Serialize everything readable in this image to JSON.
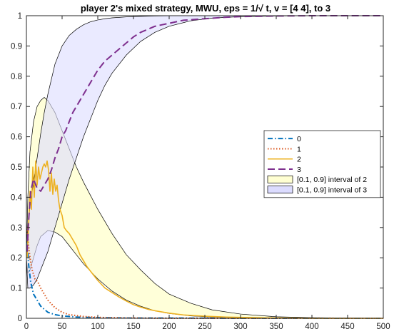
{
  "chart_data": {
    "type": "line",
    "title": "player 2's mixed strategy, MWU, eps = 1/√ t, v = [4  4], to 3",
    "xlabel": "",
    "ylabel": "",
    "xlim": [
      0,
      500
    ],
    "ylim": [
      0,
      1
    ],
    "x_ticks": [
      0,
      50,
      100,
      150,
      200,
      250,
      300,
      350,
      400,
      450,
      500
    ],
    "y_ticks": [
      0,
      0.1,
      0.2,
      0.3,
      0.4,
      0.5,
      0.6,
      0.7,
      0.8,
      0.9,
      1
    ],
    "grid": false,
    "legend_position": "right",
    "series": [
      {
        "name": "0",
        "color": "#0072BD",
        "dash": "dash-dot",
        "x": [
          1,
          3,
          6,
          10,
          15,
          20,
          30,
          40,
          50,
          70,
          100,
          150,
          200,
          300,
          400,
          500
        ],
        "y": [
          0.25,
          0.18,
          0.12,
          0.08,
          0.06,
          0.04,
          0.02,
          0.012,
          0.008,
          0.004,
          0.002,
          0.001,
          0.001,
          0.0,
          0.0,
          0.0
        ]
      },
      {
        "name": "1",
        "color": "#D95319",
        "dash": "dotted",
        "x": [
          1,
          3,
          5,
          8,
          12,
          16,
          20,
          25,
          30,
          40,
          50,
          60,
          80,
          100,
          150,
          200,
          300,
          500
        ],
        "y": [
          0.3,
          0.24,
          0.2,
          0.16,
          0.13,
          0.12,
          0.1,
          0.08,
          0.06,
          0.035,
          0.02,
          0.012,
          0.006,
          0.003,
          0.001,
          0.0,
          0.0,
          0.0
        ]
      },
      {
        "name": "2",
        "color": "#EDB120",
        "dash": "solid",
        "x": [
          1,
          3,
          5,
          7,
          9,
          11,
          13,
          15,
          17,
          19,
          21,
          23,
          25,
          27,
          29,
          31,
          33,
          35,
          37,
          39,
          41,
          43,
          45,
          47,
          50,
          53,
          56,
          60,
          65,
          70,
          75,
          80,
          85,
          90,
          95,
          100,
          110,
          120,
          130,
          140,
          150,
          160,
          170,
          180,
          200,
          220,
          250,
          280,
          300,
          350,
          400,
          450,
          500
        ],
        "y": [
          0.2,
          0.3,
          0.42,
          0.36,
          0.5,
          0.4,
          0.52,
          0.44,
          0.5,
          0.46,
          0.48,
          0.5,
          0.51,
          0.5,
          0.52,
          0.49,
          0.42,
          0.48,
          0.41,
          0.46,
          0.42,
          0.44,
          0.39,
          0.36,
          0.34,
          0.3,
          0.29,
          0.28,
          0.26,
          0.24,
          0.21,
          0.19,
          0.17,
          0.155,
          0.14,
          0.125,
          0.1,
          0.085,
          0.07,
          0.057,
          0.045,
          0.037,
          0.03,
          0.025,
          0.017,
          0.011,
          0.007,
          0.004,
          0.003,
          0.001,
          0.0,
          0.0,
          0.0
        ]
      },
      {
        "name": "3",
        "color": "#7E2F8E",
        "dash": "dashed",
        "x": [
          1,
          3,
          6,
          10,
          15,
          20,
          25,
          30,
          35,
          40,
          45,
          50,
          55,
          60,
          65,
          70,
          75,
          80,
          85,
          90,
          95,
          100,
          110,
          120,
          130,
          140,
          150,
          160,
          170,
          180,
          200,
          220,
          250,
          280,
          300,
          350,
          400,
          450,
          500
        ],
        "y": [
          0.22,
          0.32,
          0.42,
          0.46,
          0.43,
          0.42,
          0.44,
          0.46,
          0.49,
          0.53,
          0.56,
          0.6,
          0.62,
          0.65,
          0.68,
          0.7,
          0.72,
          0.74,
          0.76,
          0.78,
          0.8,
          0.82,
          0.85,
          0.87,
          0.89,
          0.91,
          0.93,
          0.945,
          0.955,
          0.965,
          0.975,
          0.985,
          0.99,
          0.995,
          0.997,
          0.999,
          1.0,
          1.0,
          1.0
        ]
      }
    ],
    "bands": [
      {
        "name": "[0.1, 0.9] interval of 2",
        "fill": "#FFFFD2",
        "upper": {
          "x": [
            0,
            2,
            5,
            10,
            15,
            20,
            25,
            30,
            40,
            50,
            60,
            70,
            80,
            100,
            120,
            140,
            160,
            180,
            200,
            230,
            260,
            300,
            350,
            400,
            500
          ],
          "y": [
            0.2,
            0.4,
            0.55,
            0.65,
            0.7,
            0.72,
            0.73,
            0.72,
            0.68,
            0.62,
            0.56,
            0.5,
            0.45,
            0.36,
            0.28,
            0.21,
            0.16,
            0.115,
            0.08,
            0.05,
            0.028,
            0.014,
            0.005,
            0.002,
            0.0
          ]
        },
        "lower": {
          "x": [
            0,
            2,
            5,
            10,
            15,
            20,
            25,
            30,
            40,
            50,
            60,
            70,
            80,
            100,
            120,
            140,
            160,
            180,
            200,
            230,
            260,
            300,
            350,
            400,
            500
          ],
          "y": [
            0.2,
            0.15,
            0.16,
            0.2,
            0.24,
            0.27,
            0.28,
            0.29,
            0.285,
            0.27,
            0.24,
            0.21,
            0.18,
            0.13,
            0.09,
            0.06,
            0.04,
            0.025,
            0.016,
            0.008,
            0.004,
            0.002,
            0.0005,
            0.0,
            0.0
          ]
        }
      },
      {
        "name": "[0.1, 0.9] interval of 3",
        "fill": "#DCDCFF",
        "upper": {
          "x": [
            0,
            2,
            5,
            10,
            15,
            20,
            25,
            30,
            40,
            50,
            60,
            70,
            80,
            90,
            100,
            110,
            120,
            140,
            160,
            180,
            200,
            230,
            260,
            300,
            350,
            400,
            500
          ],
          "y": [
            0.2,
            0.3,
            0.37,
            0.45,
            0.53,
            0.61,
            0.68,
            0.74,
            0.84,
            0.9,
            0.935,
            0.955,
            0.97,
            0.98,
            0.986,
            0.99,
            0.993,
            0.996,
            0.998,
            0.999,
            0.9995,
            1.0,
            1.0,
            1.0,
            1.0,
            1.0,
            1.0
          ]
        },
        "lower": {
          "x": [
            0,
            2,
            5,
            10,
            15,
            20,
            25,
            30,
            40,
            50,
            60,
            70,
            80,
            90,
            100,
            110,
            120,
            140,
            160,
            180,
            200,
            230,
            260,
            300,
            350,
            400,
            500
          ],
          "y": [
            0.2,
            0.1,
            0.1,
            0.11,
            0.13,
            0.16,
            0.19,
            0.22,
            0.3,
            0.38,
            0.46,
            0.53,
            0.6,
            0.66,
            0.72,
            0.77,
            0.81,
            0.87,
            0.915,
            0.945,
            0.965,
            0.983,
            0.992,
            0.997,
            0.999,
            1.0,
            1.0
          ]
        }
      }
    ],
    "legend": [
      "0",
      "1",
      "2",
      "3",
      "[0.1, 0.9] interval of 2",
      "[0.1, 0.9] interval of 3"
    ]
  }
}
